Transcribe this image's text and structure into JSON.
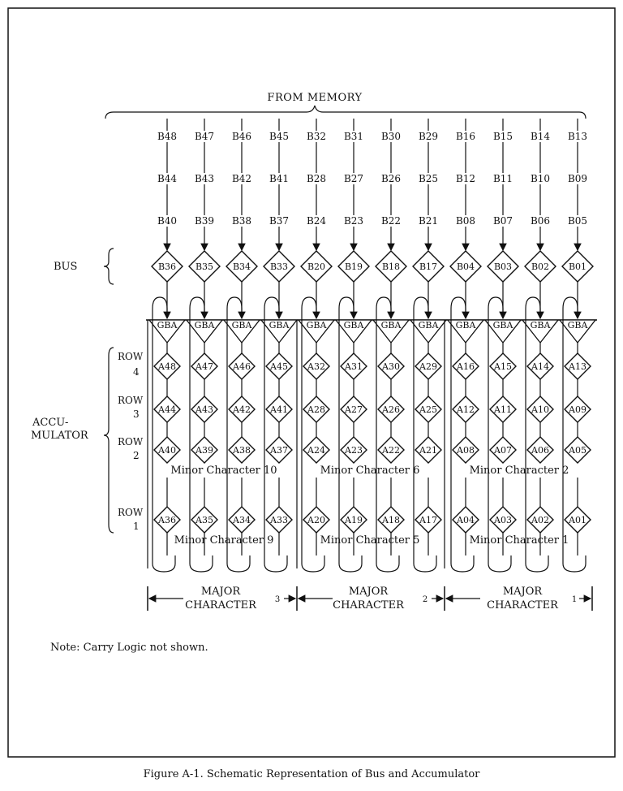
{
  "header": {
    "from_memory": "FROM MEMORY"
  },
  "labels": {
    "bus": "BUS",
    "accumulator_line1": "ACCU-",
    "accumulator_line2": "MULATOR",
    "row_word": "ROW",
    "row_numbers": [
      "4",
      "3",
      "2",
      "1"
    ],
    "gate": "GBA"
  },
  "columns": [
    {
      "b_inputs": [
        "B48",
        "B44",
        "B40"
      ],
      "bus": "B36",
      "acc": [
        "A48",
        "A44",
        "A40",
        "A36"
      ]
    },
    {
      "b_inputs": [
        "B47",
        "B43",
        "B39"
      ],
      "bus": "B35",
      "acc": [
        "A47",
        "A43",
        "A39",
        "A35"
      ]
    },
    {
      "b_inputs": [
        "B46",
        "B42",
        "B38"
      ],
      "bus": "B34",
      "acc": [
        "A46",
        "A42",
        "A38",
        "A34"
      ]
    },
    {
      "b_inputs": [
        "B45",
        "B41",
        "B37"
      ],
      "bus": "B33",
      "acc": [
        "A45",
        "A41",
        "A37",
        "A33"
      ]
    },
    {
      "b_inputs": [
        "B32",
        "B28",
        "B24"
      ],
      "bus": "B20",
      "acc": [
        "A32",
        "A28",
        "A24",
        "A20"
      ]
    },
    {
      "b_inputs": [
        "B31",
        "B27",
        "B23"
      ],
      "bus": "B19",
      "acc": [
        "A31",
        "A27",
        "A23",
        "A19"
      ]
    },
    {
      "b_inputs": [
        "B30",
        "B26",
        "B22"
      ],
      "bus": "B18",
      "acc": [
        "A30",
        "A26",
        "A22",
        "A18"
      ]
    },
    {
      "b_inputs": [
        "B29",
        "B25",
        "B21"
      ],
      "bus": "B17",
      "acc": [
        "A29",
        "A25",
        "A21",
        "A17"
      ]
    },
    {
      "b_inputs": [
        "B16",
        "B12",
        "B08"
      ],
      "bus": "B04",
      "acc": [
        "A16",
        "A12",
        "A08",
        "A04"
      ]
    },
    {
      "b_inputs": [
        "B15",
        "B11",
        "B07"
      ],
      "bus": "B03",
      "acc": [
        "A15",
        "A11",
        "A07",
        "A03"
      ]
    },
    {
      "b_inputs": [
        "B14",
        "B10",
        "B06"
      ],
      "bus": "B02",
      "acc": [
        "A14",
        "A10",
        "A06",
        "A02"
      ]
    },
    {
      "b_inputs": [
        "B13",
        "B09",
        "B05"
      ],
      "bus": "B01",
      "acc": [
        "A13",
        "A09",
        "A05",
        "A01"
      ]
    }
  ],
  "minor_characters_upper": [
    "Minor Character 10",
    "Minor Character 6",
    "Minor Character 2"
  ],
  "minor_characters_lower": [
    "Minor Character 9",
    "Minor Character 5",
    "Minor Character 1"
  ],
  "major_characters": [
    {
      "line1": "MAJOR",
      "line2": "CHARACTER",
      "number": "3"
    },
    {
      "line1": "MAJOR",
      "line2": "CHARACTER",
      "number": "2"
    },
    {
      "line1": "MAJOR",
      "line2": "CHARACTER",
      "number": "1"
    }
  ],
  "note": "Note:  Carry Logic not shown.",
  "caption": "Figure A-1.  Schematic Representation of Bus and Accumulator"
}
